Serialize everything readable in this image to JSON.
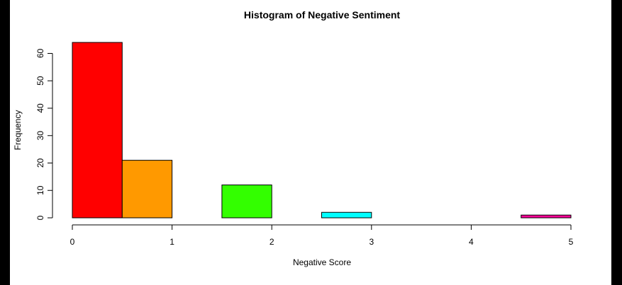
{
  "chart_data": {
    "type": "bar",
    "title": "Histogram of Negative Sentiment",
    "xlabel": "Negative Score",
    "ylabel": "Frequency",
    "bins": [
      {
        "x0": 0.0,
        "x1": 0.5,
        "value": 64,
        "color": "#ff0000"
      },
      {
        "x0": 0.5,
        "x1": 1.0,
        "value": 21,
        "color": "#ff9900"
      },
      {
        "x0": 1.0,
        "x1": 1.5,
        "value": 0,
        "color": "#ccff00"
      },
      {
        "x0": 1.5,
        "x1": 2.0,
        "value": 12,
        "color": "#33ff00"
      },
      {
        "x0": 2.0,
        "x1": 2.5,
        "value": 0,
        "color": "#00ff66"
      },
      {
        "x0": 2.5,
        "x1": 3.0,
        "value": 2,
        "color": "#00ffff"
      },
      {
        "x0": 3.0,
        "x1": 3.5,
        "value": 0,
        "color": "#0066ff"
      },
      {
        "x0": 3.5,
        "x1": 4.0,
        "value": 0,
        "color": "#3300ff"
      },
      {
        "x0": 4.0,
        "x1": 4.5,
        "value": 0,
        "color": "#cc00ff"
      },
      {
        "x0": 4.5,
        "x1": 5.0,
        "value": 1,
        "color": "#ff0099"
      }
    ],
    "xlim": [
      0,
      5
    ],
    "ylim": [
      0,
      64
    ],
    "x_ticks": [
      0,
      1,
      2,
      3,
      4,
      5
    ],
    "y_ticks": [
      0,
      10,
      20,
      30,
      40,
      50,
      60
    ],
    "grid": false
  }
}
